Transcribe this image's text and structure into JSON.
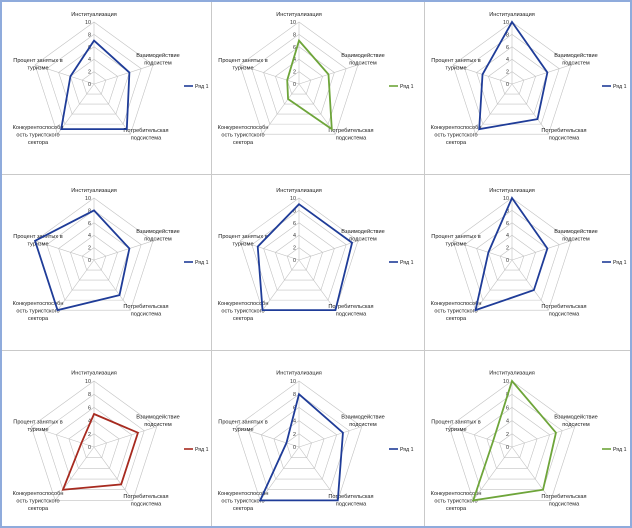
{
  "chart_data": [
    {
      "type": "line",
      "polar": true,
      "grid": true,
      "legend": "right",
      "categories": [
        [
          "Институализация"
        ],
        [
          "Взаимодействие",
          "подсистем"
        ],
        [
          "Потребительская",
          "подсистема"
        ],
        [
          "Конкурентоспособн",
          "ость туристского",
          "сектора"
        ],
        [
          "Процент занятых в",
          "туризме"
        ]
      ],
      "ticks": [
        0,
        2,
        4,
        6,
        8,
        10
      ],
      "ylim": [
        0,
        10
      ],
      "series": [
        {
          "name": "Ряд 1",
          "color": "#1f3c98",
          "values": [
            7,
            6,
            9,
            9,
            4
          ]
        }
      ]
    },
    {
      "type": "line",
      "polar": true,
      "grid": true,
      "legend": "right",
      "categories": [
        [
          "Институализация"
        ],
        [
          "Взаимодействие",
          "подсистем"
        ],
        [
          "Потребительская",
          "подсистема"
        ],
        [
          "Конкурентоспособн",
          "ость туристского",
          "сектора"
        ],
        [
          "Процент занятых в",
          "туризме"
        ]
      ],
      "ticks": [
        0,
        2,
        4,
        6,
        8,
        10
      ],
      "ylim": [
        0,
        10
      ],
      "series": [
        {
          "name": "Ряд 1",
          "color": "#6ea53a",
          "values": [
            7,
            5,
            9,
            3,
            2
          ]
        }
      ]
    },
    {
      "type": "line",
      "polar": true,
      "grid": true,
      "legend": "right",
      "categories": [
        [
          "Институализация"
        ],
        [
          "Взаимодействие",
          "подсистем"
        ],
        [
          "Потребительская",
          "подсистема"
        ],
        [
          "Конкурентоспособн",
          "ость туристского",
          "сектора"
        ],
        [
          "Процент занятых в",
          "туризме"
        ]
      ],
      "ticks": [
        0,
        2,
        4,
        6,
        8,
        10
      ],
      "ylim": [
        0,
        10
      ],
      "series": [
        {
          "name": "Ряд 1",
          "color": "#1f3c98",
          "values": [
            10,
            6,
            7,
            9,
            5
          ]
        }
      ]
    },
    {
      "type": "line",
      "polar": true,
      "grid": true,
      "legend": "right",
      "categories": [
        [
          "Институализация"
        ],
        [
          "Взаимодействие",
          "подсистем"
        ],
        [
          "Потребительская",
          "подсистема"
        ],
        [
          "Конкурентоспособн",
          "ость туристского",
          "сектора"
        ],
        [
          "Процент занятых в",
          "туризме"
        ]
      ],
      "ticks": [
        0,
        2,
        4,
        6,
        8,
        10
      ],
      "ylim": [
        0,
        10
      ],
      "series": [
        {
          "name": "Ряд 1",
          "color": "#1f3c98",
          "values": [
            8,
            6,
            7,
            10,
            10
          ]
        }
      ]
    },
    {
      "type": "line",
      "polar": true,
      "grid": true,
      "legend": "right",
      "categories": [
        [
          "Институализация"
        ],
        [
          "Взаимодействие",
          "подсистем"
        ],
        [
          "Потребительская",
          "подсистема"
        ],
        [
          "Конкурентоспособн",
          "ость туристского",
          "сектора"
        ],
        [
          "Процент занятых в",
          "туризме"
        ]
      ],
      "ticks": [
        0,
        2,
        4,
        6,
        8,
        10
      ],
      "ylim": [
        0,
        10
      ],
      "series": [
        {
          "name": "Ряд 1",
          "color": "#1f3c98",
          "values": [
            9,
            9,
            10,
            10,
            7
          ]
        }
      ]
    },
    {
      "type": "line",
      "polar": true,
      "grid": true,
      "legend": "right",
      "categories": [
        [
          "Институализация"
        ],
        [
          "Взаимодействие",
          "подсистем"
        ],
        [
          "Потребительская",
          "подсистема"
        ],
        [
          "Конкурентоспособн",
          "ость туристского",
          "сектора"
        ],
        [
          "Процент занятых в",
          "туризме"
        ]
      ],
      "ticks": [
        0,
        2,
        4,
        6,
        8,
        10
      ],
      "ylim": [
        0,
        10
      ],
      "series": [
        {
          "name": "Ряд 1",
          "color": "#1f3c98",
          "values": [
            10,
            6,
            6,
            10,
            4
          ]
        }
      ]
    },
    {
      "type": "line",
      "polar": true,
      "grid": true,
      "legend": "right",
      "categories": [
        [
          "Институализация"
        ],
        [
          "Взаимодействие",
          "подсистем"
        ],
        [
          "Потребительская",
          "подсистема"
        ],
        [
          "Конкурентоспособн",
          "ость туристского",
          "сектора"
        ],
        [
          "Процент занятых в",
          "туризме"
        ]
      ],
      "ticks": [
        0,
        2,
        4,
        6,
        8,
        10
      ],
      "ylim": [
        0,
        10
      ],
      "series": [
        {
          "name": "Ряд 1",
          "color": "#a72a1f",
          "values": [
            5,
            7,
            7,
            8,
            2
          ]
        }
      ]
    },
    {
      "type": "line",
      "polar": true,
      "grid": true,
      "legend": "right",
      "categories": [
        [
          "Институализация"
        ],
        [
          "Взаимодействие",
          "подсистем"
        ],
        [
          "Потребительская",
          "подсистема"
        ],
        [
          "Конкурентоспособн",
          "ость туристского",
          "сектора"
        ],
        [
          "Процент занятых в",
          "туризме"
        ]
      ],
      "ticks": [
        0,
        2,
        4,
        6,
        8,
        10
      ],
      "ylim": [
        0,
        10
      ],
      "series": [
        {
          "name": "Ряд 1",
          "color": "#1f3c98",
          "values": [
            8,
            7,
            10,
            10,
            2
          ]
        }
      ]
    },
    {
      "type": "line",
      "polar": true,
      "grid": true,
      "legend": "right",
      "categories": [
        [
          "Институализация"
        ],
        [
          "Взаимодействие",
          "подсистем"
        ],
        [
          "Потребительская",
          "подсистема"
        ],
        [
          "Конкурентоспособн",
          "ость туристского",
          "сектора"
        ],
        [
          "Процент занятых в",
          "туризме"
        ]
      ],
      "ticks": [
        0,
        2,
        4,
        6,
        8,
        10
      ],
      "ylim": [
        0,
        10
      ],
      "series": [
        {
          "name": "Ряд 1",
          "color": "#6ea53a",
          "values": [
            10,
            7,
            8,
            10,
            3
          ]
        }
      ]
    }
  ]
}
